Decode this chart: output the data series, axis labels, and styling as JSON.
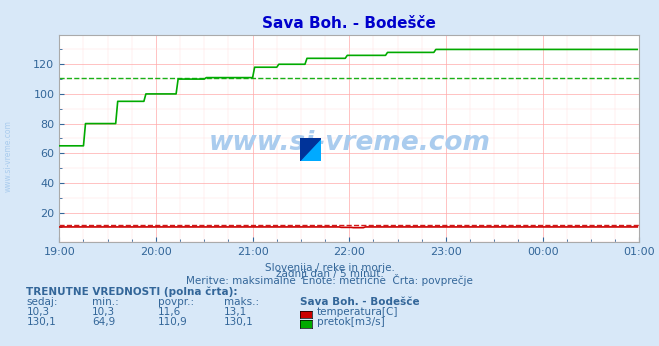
{
  "title": "Sava Boh. - Bodešče",
  "title_color": "#0000cc",
  "bg_color": "#d8e8f8",
  "plot_bg_color": "#ffffff",
  "grid_color_major": "#ffaaaa",
  "grid_color_minor": "#ffdddd",
  "xlim": [
    0,
    288
  ],
  "ylim": [
    0,
    140
  ],
  "yticks": [
    20,
    40,
    60,
    80,
    100,
    120
  ],
  "xtick_labels": [
    "19:00",
    "20:00",
    "21:00",
    "22:00",
    "23:00",
    "00:00",
    "01:00"
  ],
  "xtick_positions": [
    0,
    48,
    96,
    144,
    192,
    240,
    288
  ],
  "avg_flow": 110.9,
  "avg_temp": 11.6,
  "watermark": "www.si-vreme.com",
  "sub_line1": "Slovenija / reke in morje.",
  "sub_line2": "zadnji dan / 5 minut.",
  "sub_line3": "Meritve: maksimalne  Enote: metrične  Črta: povprečje",
  "footer_title": "TRENUTNE VREDNOSTI (polna črta):",
  "footer_headers": [
    "sedaj:",
    "min.:",
    "povpr.:",
    "maks.:",
    "Sava Boh. - Bodešče"
  ],
  "temp_row": [
    "10,3",
    "10,3",
    "11,6",
    "13,1"
  ],
  "flow_row": [
    "130,1",
    "64,9",
    "110,9",
    "130,1"
  ],
  "temp_label": "temperatura[C]",
  "flow_label": "pretok[m3/s]",
  "temp_color": "#cc0000",
  "flow_color": "#00aa00",
  "watermark_color": "#aaccee",
  "axis_label_color": "#336699",
  "tick_label_color": "#336699",
  "side_watermark": "www.si-vreme.com"
}
